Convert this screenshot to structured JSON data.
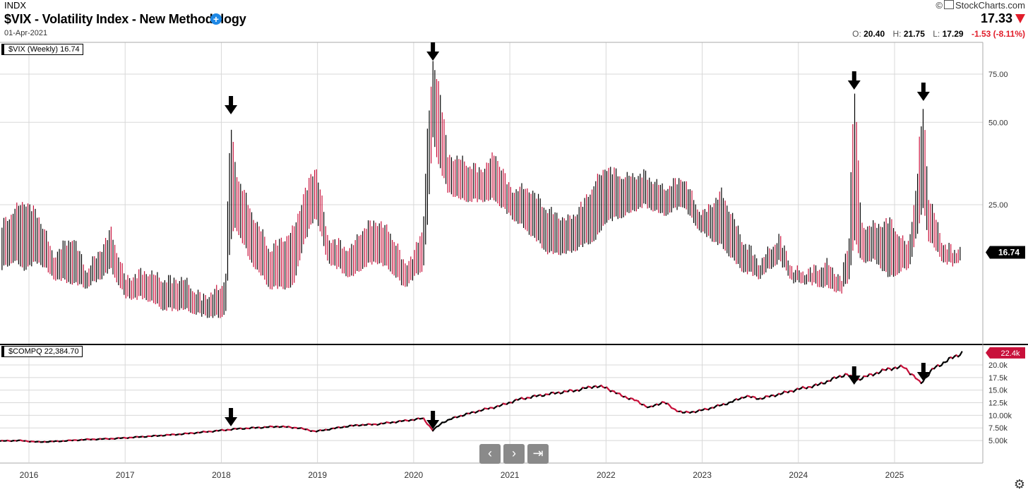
{
  "header": {
    "exchange": "INDX",
    "title": "$VIX - Volatility Index - New Methodology",
    "date": "01-Apr-2021",
    "brand": "StockCharts.com",
    "last": "17.33",
    "open_label": "O:",
    "open": "20.40",
    "high_label": "H:",
    "high": "21.75",
    "low_label": "L:",
    "low": "17.29",
    "change": "-1.53 (-8.11%)"
  },
  "colors": {
    "up": "#000000",
    "down": "#c8103a",
    "accent": "#1e88e5",
    "negative": "#e11d2a",
    "grid": "#d8d8d8"
  },
  "icons": {
    "add": "plus-circle-icon",
    "prev": "chevron-left-icon",
    "next": "chevron-right-icon",
    "end": "skip-to-end-icon",
    "settings": "gear-icon",
    "down": "triangle-down-icon",
    "annotation": "arrow-down-icon"
  },
  "nav": {
    "prev": "‹",
    "next": "›",
    "end": "⇥"
  },
  "chart_data": [
    {
      "type": "bar",
      "subtype": "ohlc-weekly",
      "panel": "vix",
      "legend": "$VIX (Weekly) 16.74",
      "last_value_tag": "16.74",
      "y_scale": "log",
      "ylim": [
        9,
        86
      ],
      "y_ticks": [
        "25.00",
        "50.00",
        "75.00"
      ],
      "y_tick_values": [
        25,
        50,
        75
      ],
      "x_ticks": [
        "2016",
        "2017",
        "2018",
        "2019",
        "2020",
        "2021",
        "2022",
        "2023",
        "2024",
        "2025"
      ],
      "x_tick_years": [
        2016,
        2017,
        2018,
        2019,
        2020,
        2021,
        2022,
        2023,
        2024,
        2025
      ],
      "x_range": [
        2015.7,
        2025.7
      ],
      "grid": true,
      "key_points": [
        [
          2015.7,
          22,
          14
        ],
        [
          2015.85,
          25,
          15
        ],
        [
          2015.95,
          27,
          14
        ],
        [
          2016.1,
          24,
          15
        ],
        [
          2016.25,
          17,
          13
        ],
        [
          2016.45,
          20,
          12.5
        ],
        [
          2016.6,
          15,
          12
        ],
        [
          2016.75,
          18,
          13
        ],
        [
          2016.85,
          21,
          14
        ],
        [
          2017.0,
          14,
          11
        ],
        [
          2017.2,
          15,
          11
        ],
        [
          2017.4,
          14,
          10
        ],
        [
          2017.6,
          14,
          10
        ],
        [
          2017.8,
          12,
          9.5
        ],
        [
          2018.0,
          13,
          9.3
        ],
        [
          2018.05,
          15,
          10
        ],
        [
          2018.1,
          50,
          18
        ],
        [
          2018.15,
          35,
          20
        ],
        [
          2018.3,
          25,
          15
        ],
        [
          2018.5,
          18,
          12
        ],
        [
          2018.75,
          21,
          12
        ],
        [
          2018.85,
          28,
          17
        ],
        [
          2018.98,
          36,
          22
        ],
        [
          2019.1,
          20,
          15
        ],
        [
          2019.35,
          18,
          13
        ],
        [
          2019.45,
          21,
          14
        ],
        [
          2019.6,
          23,
          15
        ],
        [
          2019.75,
          21,
          14
        ],
        [
          2019.9,
          16,
          12
        ],
        [
          2020.0,
          17,
          13
        ],
        [
          2020.1,
          22,
          14
        ],
        [
          2020.15,
          48,
          21
        ],
        [
          2020.2,
          85,
          42
        ],
        [
          2020.25,
          76,
          35
        ],
        [
          2020.35,
          40,
          27
        ],
        [
          2020.5,
          38,
          25
        ],
        [
          2020.7,
          35,
          25
        ],
        [
          2020.85,
          40,
          25
        ],
        [
          2021.0,
          30,
          22
        ],
        [
          2021.2,
          30,
          19
        ],
        [
          2021.4,
          25,
          16
        ],
        [
          2021.6,
          23,
          16
        ],
        [
          2021.75,
          26,
          17
        ],
        [
          2021.9,
          32,
          18
        ],
        [
          2022.0,
          36,
          21
        ],
        [
          2022.2,
          33,
          22
        ],
        [
          2022.4,
          34,
          24
        ],
        [
          2022.6,
          30,
          22
        ],
        [
          2022.8,
          33,
          24
        ],
        [
          2022.9,
          28,
          21
        ],
        [
          2023.0,
          24,
          19
        ],
        [
          2023.2,
          29,
          17
        ],
        [
          2023.4,
          20,
          14
        ],
        [
          2023.6,
          16,
          13
        ],
        [
          2023.8,
          20,
          15
        ],
        [
          2023.95,
          15,
          12.5
        ],
        [
          2024.1,
          15,
          12.5
        ],
        [
          2024.3,
          16,
          12
        ],
        [
          2024.45,
          14,
          11.5
        ],
        [
          2024.53,
          20,
          13
        ],
        [
          2024.58,
          66,
          18
        ],
        [
          2024.65,
          22,
          15
        ],
        [
          2024.8,
          22,
          15
        ],
        [
          2024.95,
          23,
          13
        ],
        [
          2025.1,
          19,
          14
        ],
        [
          2025.15,
          19,
          14
        ],
        [
          2025.22,
          29,
          18
        ],
        [
          2025.27,
          45,
          21
        ],
        [
          2025.3,
          60,
          24
        ],
        [
          2025.35,
          28,
          18
        ],
        [
          2025.5,
          19,
          15
        ],
        [
          2025.6,
          18,
          14.5
        ],
        [
          2025.7,
          17.3,
          15.3
        ]
      ],
      "annotations": [
        {
          "label": "arrow",
          "x": 2018.1
        },
        {
          "label": "arrow",
          "x": 2020.2
        },
        {
          "label": "arrow",
          "x": 2024.58
        },
        {
          "label": "arrow",
          "x": 2025.3
        }
      ]
    },
    {
      "type": "line",
      "panel": "compq",
      "legend": "$COMPQ 22,384.70",
      "last_value_tag": "22.4k",
      "y_scale": "linear",
      "ylim": [
        3750,
        23500
      ],
      "y_ticks": [
        "5.00k",
        "7.50k",
        "10.00k",
        "12.5k",
        "15.0k",
        "17.5k",
        "20.0k"
      ],
      "y_tick_values": [
        5000,
        7500,
        10000,
        12500,
        15000,
        17500,
        20000
      ],
      "x_range": [
        2015.7,
        2025.7
      ],
      "grid": true,
      "x": [
        2015.7,
        2015.9,
        2016.1,
        2016.3,
        2016.6,
        2016.9,
        2017.3,
        2017.6,
        2018.0,
        2018.15,
        2018.6,
        2018.8,
        2018.98,
        2019.3,
        2019.45,
        2019.6,
        2019.9,
        2020.1,
        2020.2,
        2020.3,
        2020.45,
        2020.7,
        2020.9,
        2021.1,
        2021.3,
        2021.5,
        2021.7,
        2021.88,
        2022.0,
        2022.15,
        2022.3,
        2022.45,
        2022.6,
        2022.7,
        2022.8,
        2022.95,
        2023.1,
        2023.3,
        2023.45,
        2023.6,
        2023.82,
        2024.0,
        2024.2,
        2024.4,
        2024.5,
        2024.6,
        2024.75,
        2024.95,
        2025.1,
        2025.22,
        2025.27,
        2025.4,
        2025.55,
        2025.7
      ],
      "values": [
        4900,
        5000,
        4700,
        4850,
        5200,
        5400,
        5900,
        6300,
        7000,
        7300,
        7800,
        7500,
        6800,
        7800,
        8100,
        8200,
        8900,
        9400,
        7000,
        8600,
        9700,
        11000,
        11900,
        13200,
        13900,
        14500,
        15000,
        15800,
        15500,
        14000,
        13000,
        11500,
        12700,
        11300,
        10500,
        10800,
        11500,
        12600,
        13800,
        13300,
        14300,
        15200,
        16000,
        17500,
        18200,
        17000,
        18000,
        19300,
        19600,
        17400,
        16300,
        19200,
        20900,
        22400
      ]
    }
  ]
}
